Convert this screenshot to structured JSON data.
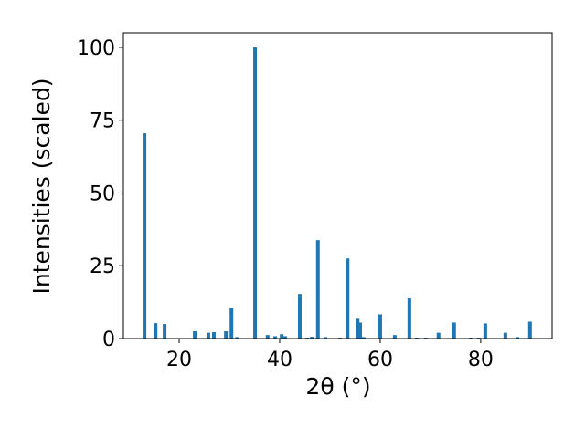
{
  "chart_data": {
    "type": "bar",
    "x_label": "2θ (°)",
    "y_label": "Intensities (scaled)",
    "color": "#1f77b4",
    "x": [
      13.1,
      15.3,
      17.1,
      23.1,
      25.8,
      26.9,
      29.3,
      30.4,
      31.5,
      35.1,
      37.6,
      39.1,
      40.4,
      41.1,
      44.0,
      45.5,
      46.4,
      47.6,
      49.1,
      52.0,
      53.5,
      55.5,
      56.0,
      56.7,
      60.0,
      62.9,
      65.8,
      67.3,
      69.1,
      71.6,
      74.7,
      78.0,
      79.6,
      80.9,
      84.9,
      87.3,
      89.8
    ],
    "values": [
      70.5,
      5.3,
      5,
      2.5,
      2,
      2.2,
      2.5,
      10.5,
      0.5,
      100,
      1.2,
      0.8,
      1.5,
      0.8,
      15.3,
      0.3,
      0.6,
      33.8,
      0.5,
      0.3,
      27.5,
      6.8,
      5.5,
      0.5,
      8.3,
      1.2,
      13.8,
      0.3,
      0.3,
      2,
      5.5,
      0.3,
      0.3,
      5.2,
      2,
      0.5,
      5.8
    ],
    "xlim": [
      8.9,
      94.2
    ],
    "ylim": [
      0,
      105
    ],
    "xticks": [
      20,
      40,
      60,
      80
    ],
    "yticks": [
      0,
      25,
      50,
      75,
      100
    ]
  }
}
